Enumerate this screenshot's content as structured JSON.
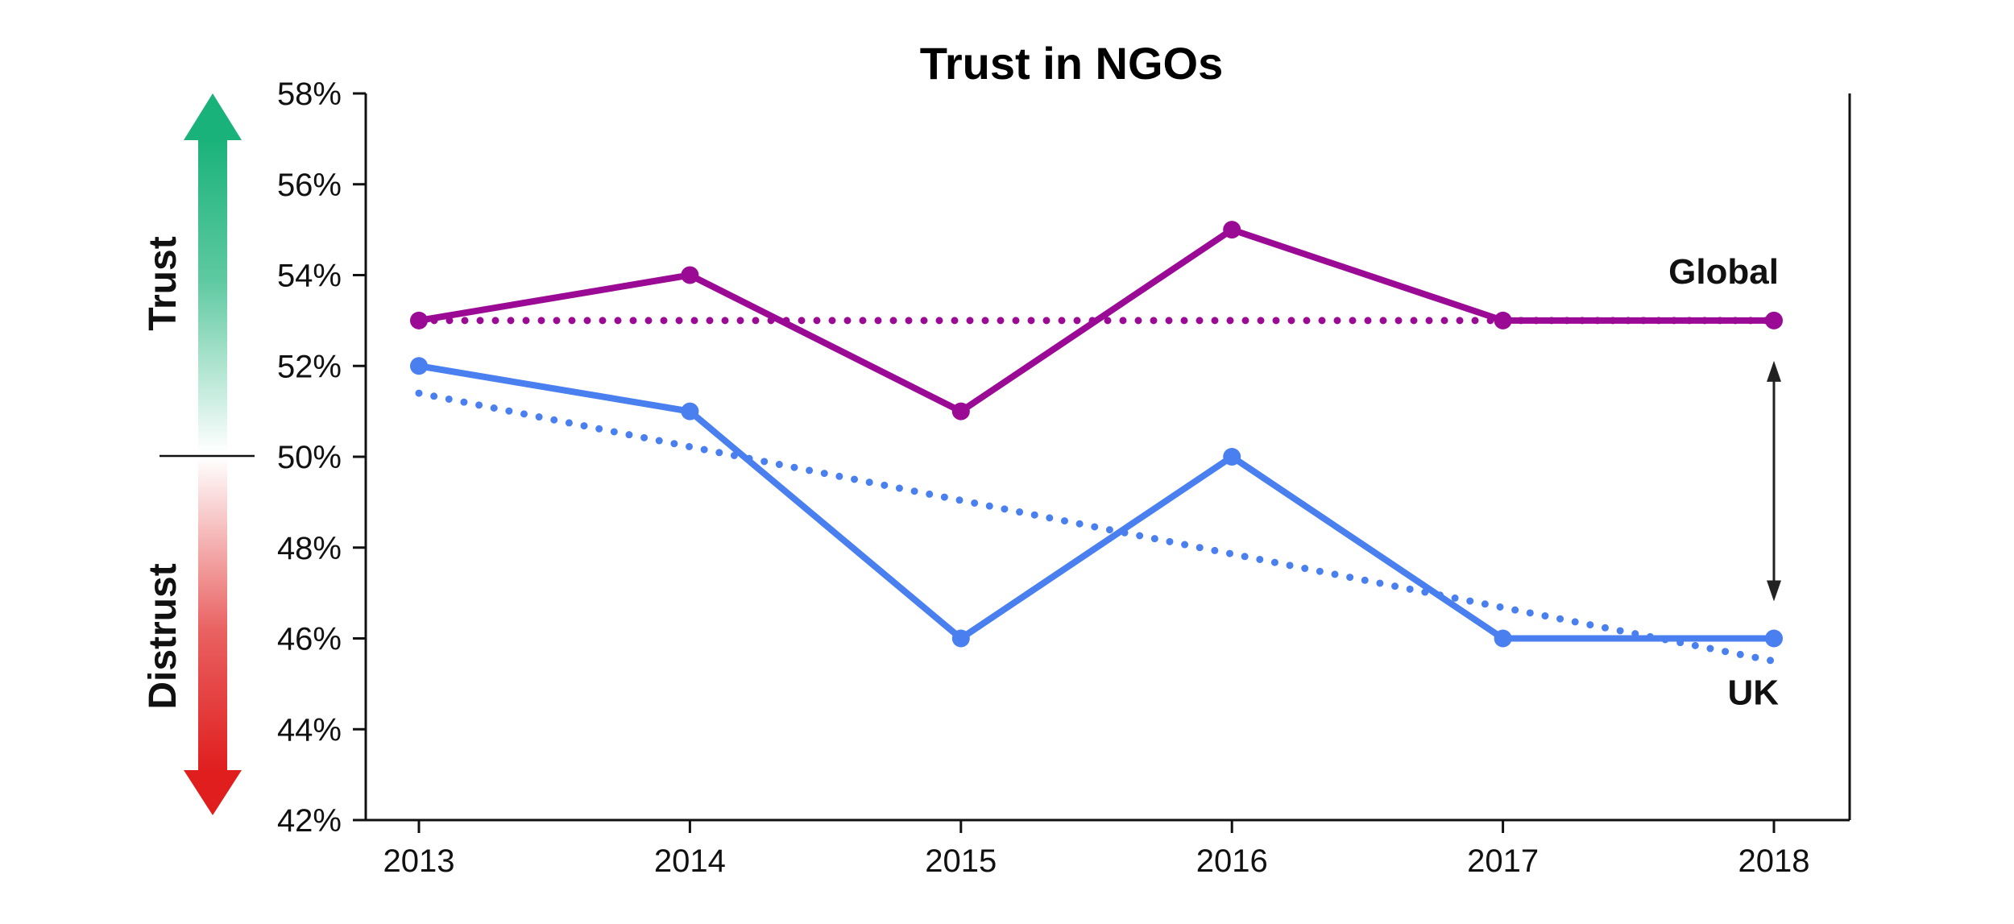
{
  "chart_data": {
    "type": "line",
    "title": "Trust in NGOs",
    "x": [
      "2013",
      "2014",
      "2015",
      "2016",
      "2017",
      "2018"
    ],
    "ylim": [
      42,
      58
    ],
    "y_ticks": [
      "42%",
      "44%",
      "46%",
      "48%",
      "50%",
      "52%",
      "54%",
      "56%",
      "58%"
    ],
    "y_tick_values": [
      42,
      44,
      46,
      48,
      50,
      52,
      54,
      56,
      58
    ],
    "series": [
      {
        "name": "Global",
        "values": [
          53,
          54,
          51,
          55,
          53,
          53
        ],
        "color": "#9a0a94"
      },
      {
        "name": "UK",
        "values": [
          52,
          51,
          46,
          50,
          46,
          46
        ],
        "color": "#4a7ff0"
      }
    ],
    "trendlines": [
      {
        "series": "Global",
        "start": 53.0,
        "end": 53.0,
        "style": "dotted",
        "color": "#9a0a94"
      },
      {
        "series": "UK",
        "start": 51.4,
        "end": 45.5,
        "style": "dotted",
        "color": "#4a7ff0"
      }
    ],
    "gap_arrow": {
      "x": "2018",
      "from": 53,
      "to": 46
    },
    "side_labels": {
      "trust": "Trust",
      "distrust": "Distrust"
    },
    "colors": {
      "trust": "#19b27a",
      "distrust": "#e01e1e"
    },
    "grid": false,
    "legend": "none"
  }
}
